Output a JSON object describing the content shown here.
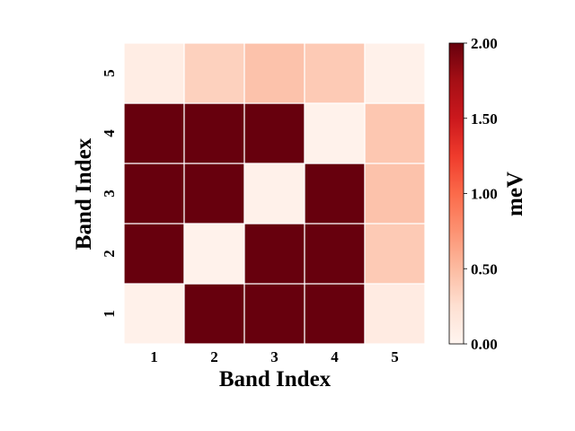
{
  "chart_data": {
    "type": "heatmap",
    "x_categories": [
      "1",
      "2",
      "3",
      "4",
      "5"
    ],
    "y_categories": [
      "1",
      "2",
      "3",
      "4",
      "5"
    ],
    "values": [
      [
        0.05,
        2.0,
        2.0,
        2.0,
        0.12
      ],
      [
        2.0,
        0.04,
        2.0,
        2.0,
        0.4
      ],
      [
        2.0,
        2.0,
        0.05,
        2.0,
        0.45
      ],
      [
        2.0,
        2.0,
        2.0,
        0.04,
        0.42
      ],
      [
        0.1,
        0.35,
        0.45,
        0.4,
        0.05
      ]
    ],
    "xlabel": "Band Index",
    "ylabel": "Band Index",
    "colorbar": {
      "label": "meV",
      "range": [
        0,
        2
      ],
      "ticks": [
        "0.00",
        "0.50",
        "1.00",
        "1.50",
        "2.00"
      ],
      "colormap": "Reds"
    },
    "grid": false
  }
}
